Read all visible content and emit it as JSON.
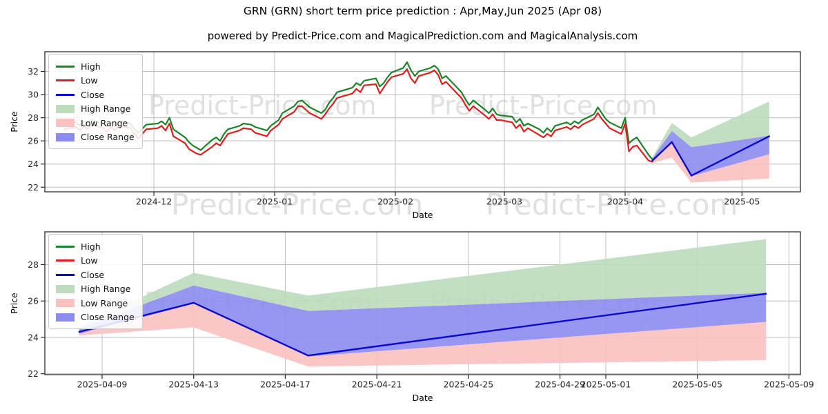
{
  "header": {
    "title": "GRN (GRN) short term price prediction : Apr,May,Jun 2025 (Apr 08)",
    "subtitle": "powered by Predict-Price.com and MagicalPrediction.com and MagicalAnalysis.com"
  },
  "watermark": {
    "text": "Predict-Price.com",
    "color": "#e0e0e0",
    "rows": [
      {
        "baseline_y": 166,
        "font_size": 38,
        "x_starts": [
          215,
          622
        ]
      },
      {
        "baseline_y": 311,
        "font_size": 42,
        "x_starts": [
          248,
          704
        ]
      },
      {
        "baseline_y": 451,
        "font_size": 38,
        "x_starts": [
          209,
          623
        ]
      }
    ]
  },
  "colors": {
    "high_line": "#1e8228",
    "low_line": "#dc1e1e",
    "close_line": "#0a0ac8",
    "high_band": "#bcdcbc",
    "low_band": "#fbc0c0",
    "close_band": "#8c8cf0",
    "grid": "#bdbdbd",
    "spine": "#2b2b2b",
    "tick_label": "#262626"
  },
  "legend": {
    "items": [
      {
        "label": "High",
        "kind": "line",
        "color": "#1e8228"
      },
      {
        "label": "Low",
        "kind": "line",
        "color": "#dc1e1e"
      },
      {
        "label": "Close",
        "kind": "line",
        "color": "#0a0ac8"
      },
      {
        "label": "High Range",
        "kind": "patch",
        "color": "#bcdcbc"
      },
      {
        "label": "Low Range",
        "kind": "patch",
        "color": "#fbc0c0"
      },
      {
        "label": "Close Range",
        "kind": "patch",
        "color": "#8c8cf0"
      }
    ]
  },
  "chart_data": [
    {
      "type": "line",
      "title": "GRN (GRN) short term price prediction : Apr,May,Jun 2025 (Apr 08)",
      "xlabel": "Date",
      "ylabel": "Price",
      "x_unit": "days since 2024-11-03",
      "xlim": [
        0,
        194
      ],
      "ylim": [
        21.6,
        33.7
      ],
      "yticks": [
        22,
        24,
        26,
        28,
        30,
        32
      ],
      "xticks": [
        {
          "x": 28,
          "label": "2024-12"
        },
        {
          "x": 59,
          "label": "2025-01"
        },
        {
          "x": 90,
          "label": "2025-02"
        },
        {
          "x": 118,
          "label": "2025-03"
        },
        {
          "x": 149,
          "label": "2025-04"
        },
        {
          "x": 179,
          "label": "2025-05"
        }
      ],
      "grid": true,
      "legend_position": "upper-left",
      "series": [
        {
          "name": "High",
          "color": "#1e8228",
          "width": 2.2,
          "x": [
            5,
            8,
            9,
            10,
            11,
            12,
            15,
            16,
            17,
            18,
            19,
            22,
            23,
            24,
            26,
            29,
            30,
            31,
            32,
            33,
            36,
            37,
            38,
            39,
            40,
            43,
            44,
            45,
            46,
            47,
            50,
            51,
            53,
            54,
            57,
            58,
            60,
            61,
            64,
            65,
            66,
            67,
            68,
            71,
            72,
            73,
            74,
            75,
            79,
            80,
            81,
            82,
            85,
            86,
            87,
            88,
            89,
            92,
            93,
            94,
            95,
            96,
            99,
            100,
            101,
            102,
            103,
            107,
            108,
            109,
            110,
            113,
            114,
            115,
            116,
            117,
            120,
            121,
            122,
            123,
            124,
            127,
            128,
            129,
            130,
            131,
            134,
            135,
            136,
            137,
            138,
            141,
            142,
            143,
            144,
            145,
            148,
            149,
            150,
            151,
            152,
            155,
            156
          ],
          "y": [
            27.4,
            27.6,
            27.3,
            27.7,
            27.5,
            27.8,
            27.5,
            27.2,
            27.6,
            27.4,
            27.7,
            27.5,
            27.0,
            26.7,
            27.4,
            27.5,
            27.7,
            27.4,
            28.0,
            27.0,
            26.3,
            25.9,
            25.6,
            25.4,
            25.2,
            26.1,
            26.3,
            26.0,
            26.6,
            27.0,
            27.3,
            27.5,
            27.4,
            27.2,
            26.9,
            27.3,
            27.8,
            28.4,
            29.0,
            29.4,
            29.5,
            29.2,
            28.9,
            28.4,
            28.7,
            29.3,
            29.7,
            30.2,
            30.6,
            31.0,
            30.8,
            31.2,
            31.4,
            30.7,
            31.0,
            31.5,
            31.9,
            32.3,
            32.8,
            32.1,
            31.6,
            32.0,
            32.3,
            32.5,
            32.2,
            31.4,
            31.6,
            30.2,
            29.6,
            29.1,
            29.5,
            28.7,
            28.4,
            28.8,
            28.3,
            28.2,
            28.1,
            27.6,
            27.9,
            27.3,
            27.5,
            27.0,
            26.7,
            27.1,
            26.8,
            27.3,
            27.6,
            27.4,
            27.7,
            27.5,
            27.8,
            28.3,
            28.9,
            28.4,
            27.9,
            27.6,
            27.1,
            28.0,
            25.8,
            26.1,
            26.3,
            24.8,
            24.4
          ]
        },
        {
          "name": "Low",
          "color": "#dc1e1e",
          "width": 2.2,
          "x": [
            5,
            8,
            9,
            10,
            11,
            12,
            15,
            16,
            17,
            18,
            19,
            22,
            23,
            24,
            26,
            29,
            30,
            31,
            32,
            33,
            36,
            37,
            38,
            39,
            40,
            43,
            44,
            45,
            46,
            47,
            50,
            51,
            53,
            54,
            57,
            58,
            60,
            61,
            64,
            65,
            66,
            67,
            68,
            71,
            72,
            73,
            74,
            75,
            79,
            80,
            81,
            82,
            85,
            86,
            87,
            88,
            89,
            92,
            93,
            94,
            95,
            96,
            99,
            100,
            101,
            102,
            103,
            107,
            108,
            109,
            110,
            113,
            114,
            115,
            116,
            117,
            120,
            121,
            122,
            123,
            124,
            127,
            128,
            129,
            130,
            131,
            134,
            135,
            136,
            137,
            138,
            141,
            142,
            143,
            144,
            145,
            148,
            149,
            150,
            151,
            152,
            155,
            156
          ],
          "y": [
            27.0,
            27.2,
            26.9,
            27.3,
            27.0,
            27.4,
            27.1,
            26.8,
            27.2,
            26.9,
            27.3,
            27.1,
            26.6,
            26.2,
            27.0,
            27.1,
            27.3,
            26.9,
            27.5,
            26.4,
            25.8,
            25.3,
            25.1,
            24.9,
            24.8,
            25.5,
            25.8,
            25.6,
            26.1,
            26.6,
            26.9,
            27.1,
            27.0,
            26.7,
            26.4,
            26.9,
            27.4,
            27.9,
            28.5,
            29.0,
            29.0,
            28.7,
            28.4,
            27.9,
            28.3,
            28.8,
            29.2,
            29.7,
            30.1,
            30.5,
            30.2,
            30.8,
            30.9,
            30.1,
            30.6,
            31.1,
            31.5,
            31.8,
            32.2,
            31.4,
            31.0,
            31.6,
            31.9,
            32.1,
            31.7,
            30.9,
            31.1,
            29.7,
            29.1,
            28.6,
            29.0,
            28.2,
            27.9,
            28.3,
            27.8,
            27.8,
            27.6,
            27.1,
            27.4,
            26.8,
            27.1,
            26.5,
            26.3,
            26.6,
            26.4,
            26.9,
            27.2,
            27.0,
            27.3,
            27.1,
            27.4,
            27.9,
            28.4,
            27.9,
            27.5,
            27.1,
            26.6,
            27.5,
            25.1,
            25.5,
            25.6,
            24.3,
            24.2
          ]
        },
        {
          "name": "Close",
          "color": "#0a0ac8",
          "width": 2.4,
          "x": [
            156,
            161,
            166,
            186
          ],
          "y": [
            24.3,
            25.9,
            23.0,
            26.4
          ]
        }
      ],
      "bands": [
        {
          "name": "High Range",
          "color": "#bcdcbc",
          "x": [
            156,
            161,
            166,
            186
          ],
          "top": [
            24.6,
            27.55,
            26.3,
            29.4
          ],
          "bottom": [
            24.5,
            26.85,
            25.45,
            26.45
          ]
        },
        {
          "name": "Low Range",
          "color": "#fbc0c0",
          "x": [
            156,
            161,
            166,
            186
          ],
          "top": [
            24.2,
            25.85,
            22.95,
            24.85
          ],
          "bottom": [
            24.1,
            24.55,
            22.4,
            22.75
          ]
        },
        {
          "name": "Close Range",
          "color": "#8c8cf0",
          "x": [
            156,
            161,
            166,
            186
          ],
          "top": [
            24.5,
            26.85,
            25.45,
            26.45
          ],
          "bottom": [
            24.2,
            25.85,
            22.95,
            24.85
          ]
        }
      ]
    },
    {
      "type": "line",
      "title": "",
      "xlabel": "Date",
      "ylabel": "Price",
      "x_unit": "days since 2025-04-06",
      "xlim": [
        0.5,
        33.5
      ],
      "ylim": [
        21.95,
        29.8
      ],
      "yticks": [
        22,
        24,
        26,
        28
      ],
      "xticks": [
        {
          "x": 3,
          "label": "2025-04-09"
        },
        {
          "x": 7,
          "label": "2025-04-13"
        },
        {
          "x": 11,
          "label": "2025-04-17"
        },
        {
          "x": 15,
          "label": "2025-04-21"
        },
        {
          "x": 19,
          "label": "2025-04-25"
        },
        {
          "x": 23,
          "label": "2025-04-29"
        },
        {
          "x": 25,
          "label": "2025-05-01"
        },
        {
          "x": 29,
          "label": "2025-05-05"
        },
        {
          "x": 33,
          "label": "2025-05-09"
        }
      ],
      "grid": true,
      "legend_position": "upper-left",
      "series": [
        {
          "name": "Close",
          "color": "#0a0ac8",
          "width": 2.4,
          "x": [
            2,
            7,
            12,
            32
          ],
          "y": [
            24.3,
            25.9,
            23.0,
            26.4
          ]
        }
      ],
      "bands": [
        {
          "name": "High Range",
          "color": "#bcdcbc",
          "x": [
            2,
            7,
            12,
            32
          ],
          "top": [
            24.6,
            27.55,
            26.3,
            29.4
          ],
          "bottom": [
            24.5,
            26.85,
            25.45,
            26.45
          ]
        },
        {
          "name": "Low Range",
          "color": "#fbc0c0",
          "x": [
            2,
            7,
            12,
            32
          ],
          "top": [
            24.2,
            25.85,
            22.95,
            24.85
          ],
          "bottom": [
            24.1,
            24.55,
            22.4,
            22.75
          ]
        },
        {
          "name": "Close Range",
          "color": "#8c8cf0",
          "x": [
            2,
            7,
            12,
            32
          ],
          "top": [
            24.5,
            26.85,
            25.45,
            26.45
          ],
          "bottom": [
            24.2,
            25.85,
            22.95,
            24.85
          ]
        }
      ]
    }
  ]
}
